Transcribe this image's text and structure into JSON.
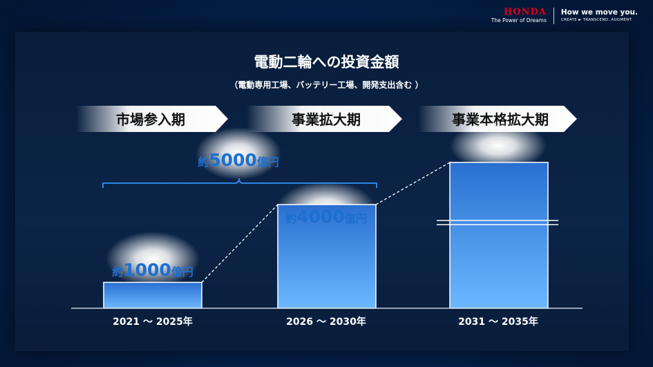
{
  "header": {
    "brand": "HONDA",
    "brand_tagline": "The Power of Dreams",
    "slogan": "How we move you.",
    "slogan_tagline": "CREATE ► TRANSCEND. AUGMENT"
  },
  "colors": {
    "bar_top": "#2a6fd0",
    "bar_bottom": "#6cb8ff",
    "value_text": "#1d6fd0",
    "bar_edge": "#ffffff"
  },
  "chart_data": {
    "type": "bar",
    "title": "電動二輪への投資金額",
    "subtitle": "（電動専用工場、バッテリー工場、開発支出含む ）",
    "categories": [
      "2021 ～ 2025年",
      "2026 ～ 2030年",
      "2031 ～ 2035年"
    ],
    "phases": [
      "市場参入期",
      "事業拡大期",
      "事業本格拡大期"
    ],
    "values": [
      1000,
      4000,
      null
    ],
    "value_labels": [
      {
        "prefix": "約",
        "number": "1000",
        "unit": "億円"
      },
      {
        "prefix": "約",
        "number": "4000",
        "unit": "億円"
      },
      null
    ],
    "third_bar_axis_break": true,
    "cumulative": {
      "prefix": "約",
      "number": "5000",
      "unit": "億円",
      "spans_categories": [
        0,
        1
      ]
    },
    "unit": "億円",
    "ylim": [
      0,
      4000
    ]
  }
}
